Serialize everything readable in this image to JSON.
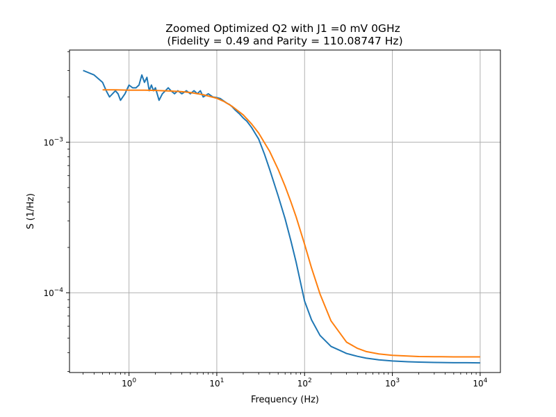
{
  "chart_data": {
    "type": "line",
    "title_line1": "Zoomed Optimized Q2 with J1 =0 mV 0GHz",
    "title_line2": "(Fidelity = 0.49 and Parity = 110.08747 Hz)",
    "xlabel": "Frequency (Hz)",
    "ylabel": "S (1/Hz)",
    "xscale": "log",
    "yscale": "log",
    "xlim": [
      0.21,
      17000
    ],
    "ylim": [
      2.95e-05,
      0.0041
    ],
    "grid": true,
    "x_ticks": [
      {
        "base": "10",
        "exp": "0",
        "value": 1
      },
      {
        "base": "10",
        "exp": "1",
        "value": 10
      },
      {
        "base": "10",
        "exp": "2",
        "value": 100
      },
      {
        "base": "10",
        "exp": "3",
        "value": 1000
      },
      {
        "base": "10",
        "exp": "4",
        "value": 10000
      }
    ],
    "y_ticks": [
      {
        "base": "10",
        "exp": "−3",
        "value": 0.001
      },
      {
        "base": "10",
        "exp": "−4",
        "value": 0.0001
      }
    ],
    "series": [
      {
        "color": "#1f77b4",
        "x": [
          0.3,
          0.4,
          0.5,
          0.55,
          0.6,
          0.7,
          0.75,
          0.8,
          0.9,
          1.0,
          1.1,
          1.2,
          1.3,
          1.4,
          1.5,
          1.6,
          1.7,
          1.8,
          1.9,
          2.0,
          2.2,
          2.4,
          2.6,
          2.8,
          3.0,
          3.3,
          3.6,
          4.0,
          4.5,
          5.0,
          5.5,
          6.0,
          6.5,
          7.0,
          8.0,
          9.0,
          10,
          11,
          12,
          13,
          14,
          15,
          16,
          18,
          20,
          22,
          25,
          28,
          30,
          35,
          40,
          50,
          60,
          70,
          80,
          100,
          120,
          150,
          200,
          250,
          300,
          400,
          500,
          700,
          1000,
          1500,
          2000,
          3000,
          5000,
          7000,
          10000
        ],
        "y": [
          0.003,
          0.0028,
          0.0025,
          0.0022,
          0.002,
          0.0022,
          0.0021,
          0.0019,
          0.0021,
          0.0024,
          0.0023,
          0.0023,
          0.0024,
          0.0028,
          0.0025,
          0.0027,
          0.0022,
          0.0024,
          0.0022,
          0.0023,
          0.0019,
          0.0021,
          0.0022,
          0.0023,
          0.0022,
          0.0021,
          0.0022,
          0.0021,
          0.0022,
          0.0021,
          0.0022,
          0.0021,
          0.0022,
          0.002,
          0.0021,
          0.002,
          0.00198,
          0.00195,
          0.00188,
          0.00182,
          0.00178,
          0.00172,
          0.00165,
          0.00155,
          0.00145,
          0.00138,
          0.00125,
          0.00112,
          0.00105,
          0.00083,
          0.00066,
          0.00044,
          0.00031,
          0.00022,
          0.00016,
          8.8e-05,
          6.6e-05,
          5.2e-05,
          4.4e-05,
          4.15e-05,
          3.95e-05,
          3.78e-05,
          3.68e-05,
          3.58e-05,
          3.52e-05,
          3.48e-05,
          3.46e-05,
          3.44e-05,
          3.43e-05,
          3.43e-05,
          3.42e-05
        ]
      },
      {
        "color": "#ff7f0e",
        "x": [
          0.5,
          0.7,
          1.0,
          1.5,
          2,
          3,
          4,
          5,
          7,
          10,
          12,
          15,
          20,
          25,
          30,
          40,
          50,
          60,
          70,
          80,
          100,
          120,
          150,
          200,
          300,
          400,
          500,
          700,
          1000,
          2000,
          3000,
          5000,
          10000
        ],
        "y": [
          0.00223,
          0.00223,
          0.00222,
          0.00222,
          0.00221,
          0.00219,
          0.00217,
          0.00214,
          0.00207,
          0.00196,
          0.00187,
          0.00173,
          0.00152,
          0.00132,
          0.00115,
          0.00087,
          0.00066,
          0.00051,
          0.0004,
          0.00032,
          0.00021,
          0.000146,
          9.8e-05,
          6.5e-05,
          4.7e-05,
          4.27e-05,
          4.07e-05,
          3.92e-05,
          3.84e-05,
          3.77e-05,
          3.76e-05,
          3.75e-05,
          3.75e-05
        ]
      }
    ]
  }
}
